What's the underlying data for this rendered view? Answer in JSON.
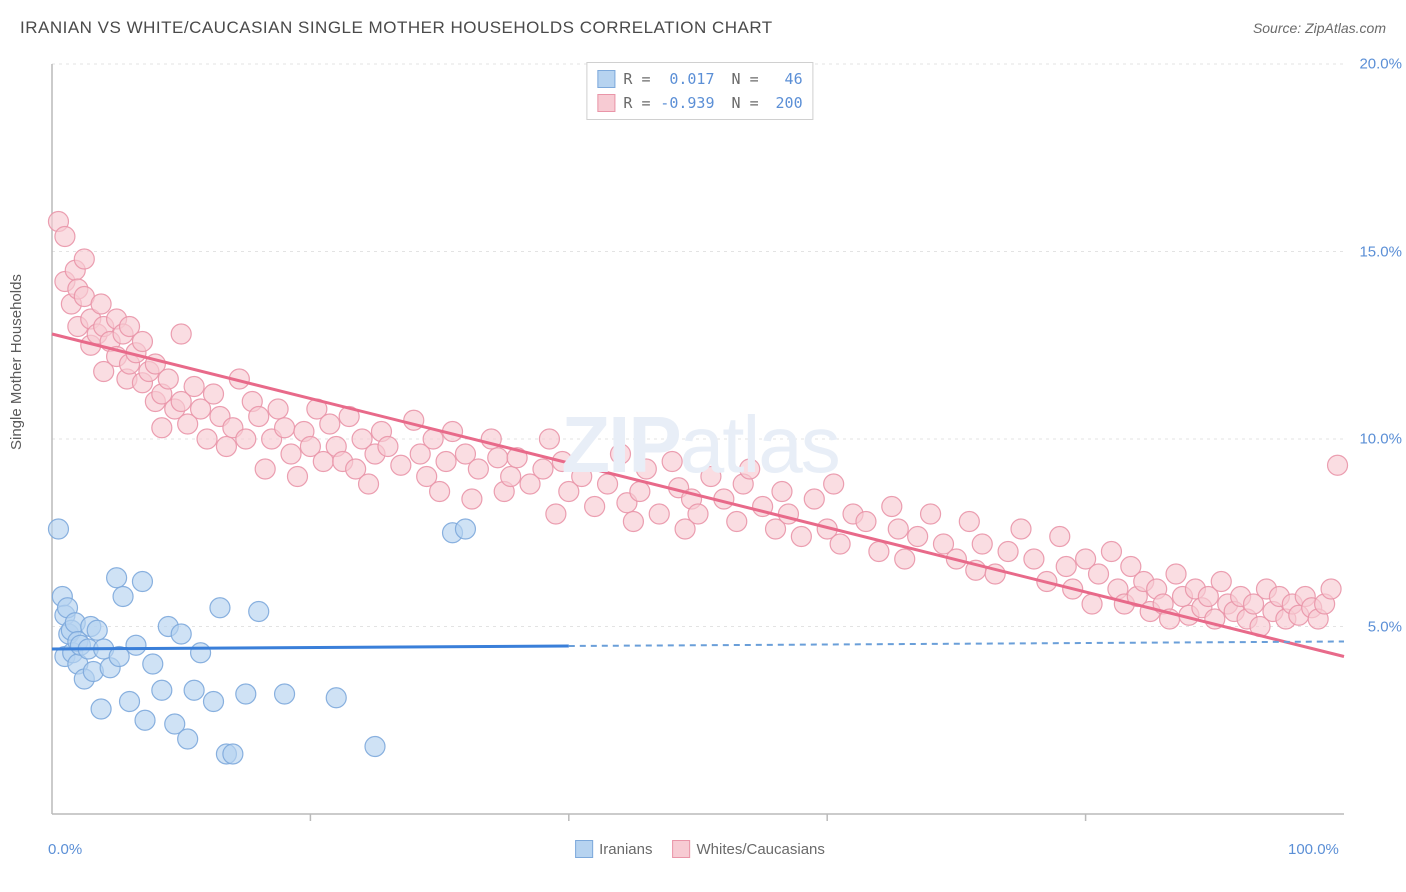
{
  "title": "IRANIAN VS WHITE/CAUCASIAN SINGLE MOTHER HOUSEHOLDS CORRELATION CHART",
  "source": "Source: ZipAtlas.com",
  "y_axis_label": "Single Mother Households",
  "watermark_bold": "ZIP",
  "watermark_light": "atlas",
  "chart": {
    "type": "scatter",
    "background_color": "#ffffff",
    "grid_color": "#e3e3e3",
    "axis_color": "#bababa",
    "xlim": [
      0,
      100
    ],
    "ylim": [
      0,
      20
    ],
    "y_ticks": [
      5.0,
      10.0,
      15.0,
      20.0
    ],
    "y_tick_labels": [
      "5.0%",
      "10.0%",
      "15.0%",
      "20.0%"
    ],
    "x_ticks": [
      0,
      100
    ],
    "x_tick_labels": [
      "0.0%",
      "100.0%"
    ],
    "x_minor_ticks": [
      20,
      40,
      60,
      80
    ],
    "series": [
      {
        "name": "Iranians",
        "marker_color_fill": "#b6d3f0",
        "marker_color_stroke": "#7da9db",
        "marker_opacity": 0.65,
        "marker_radius": 10,
        "trendline_color": "#3a7fd9",
        "trendline_width": 3,
        "trendline_dashed_color": "#6a9fd9",
        "R": "0.017",
        "N": "46",
        "trendline": {
          "x1": 0,
          "y1": 4.4,
          "x2": 100,
          "y2": 4.6,
          "solid_until_x": 40
        },
        "points": [
          [
            0.5,
            7.6
          ],
          [
            0.8,
            5.8
          ],
          [
            1.0,
            5.3
          ],
          [
            1.0,
            4.2
          ],
          [
            1.2,
            5.5
          ],
          [
            1.3,
            4.8
          ],
          [
            1.5,
            4.9
          ],
          [
            1.6,
            4.3
          ],
          [
            1.8,
            5.1
          ],
          [
            2.0,
            4.6
          ],
          [
            2.0,
            4.0
          ],
          [
            2.2,
            4.5
          ],
          [
            2.5,
            3.6
          ],
          [
            2.8,
            4.4
          ],
          [
            3.0,
            5.0
          ],
          [
            3.2,
            3.8
          ],
          [
            3.5,
            4.9
          ],
          [
            3.8,
            2.8
          ],
          [
            4.0,
            4.4
          ],
          [
            4.5,
            3.9
          ],
          [
            5.0,
            6.3
          ],
          [
            5.2,
            4.2
          ],
          [
            5.5,
            5.8
          ],
          [
            6.0,
            3.0
          ],
          [
            6.5,
            4.5
          ],
          [
            7.0,
            6.2
          ],
          [
            7.2,
            2.5
          ],
          [
            7.8,
            4.0
          ],
          [
            8.5,
            3.3
          ],
          [
            9.0,
            5.0
          ],
          [
            9.5,
            2.4
          ],
          [
            10.0,
            4.8
          ],
          [
            10.5,
            2.0
          ],
          [
            11.0,
            3.3
          ],
          [
            11.5,
            4.3
          ],
          [
            12.5,
            3.0
          ],
          [
            13.0,
            5.5
          ],
          [
            13.5,
            1.6
          ],
          [
            14.0,
            1.6
          ],
          [
            15.0,
            3.2
          ],
          [
            16.0,
            5.4
          ],
          [
            18.0,
            3.2
          ],
          [
            22.0,
            3.1
          ],
          [
            25.0,
            1.8
          ],
          [
            31.0,
            7.5
          ],
          [
            32.0,
            7.6
          ]
        ]
      },
      {
        "name": "Whites/Caucasians",
        "marker_color_fill": "#f7cbd3",
        "marker_color_stroke": "#e995a8",
        "marker_opacity": 0.65,
        "marker_radius": 10,
        "trendline_color": "#e86a8a",
        "trendline_width": 3,
        "R": "-0.939",
        "N": "200",
        "trendline": {
          "x1": 0,
          "y1": 12.8,
          "x2": 100,
          "y2": 4.2,
          "solid_until_x": 100
        },
        "points": [
          [
            0.5,
            15.8
          ],
          [
            1.0,
            15.4
          ],
          [
            1.0,
            14.2
          ],
          [
            1.5,
            13.6
          ],
          [
            1.8,
            14.5
          ],
          [
            2.0,
            14.0
          ],
          [
            2.0,
            13.0
          ],
          [
            2.5,
            13.8
          ],
          [
            2.5,
            14.8
          ],
          [
            3.0,
            13.2
          ],
          [
            3.0,
            12.5
          ],
          [
            3.5,
            12.8
          ],
          [
            3.8,
            13.6
          ],
          [
            4.0,
            13.0
          ],
          [
            4.0,
            11.8
          ],
          [
            4.5,
            12.6
          ],
          [
            5.0,
            12.2
          ],
          [
            5.0,
            13.2
          ],
          [
            5.5,
            12.8
          ],
          [
            5.8,
            11.6
          ],
          [
            6.0,
            12.0
          ],
          [
            6.0,
            13.0
          ],
          [
            6.5,
            12.3
          ],
          [
            7.0,
            11.5
          ],
          [
            7.0,
            12.6
          ],
          [
            7.5,
            11.8
          ],
          [
            8.0,
            11.0
          ],
          [
            8.0,
            12.0
          ],
          [
            8.5,
            11.2
          ],
          [
            8.5,
            10.3
          ],
          [
            9.0,
            11.6
          ],
          [
            9.5,
            10.8
          ],
          [
            10.0,
            12.8
          ],
          [
            10.0,
            11.0
          ],
          [
            10.5,
            10.4
          ],
          [
            11.0,
            11.4
          ],
          [
            11.5,
            10.8
          ],
          [
            12.0,
            10.0
          ],
          [
            12.5,
            11.2
          ],
          [
            13.0,
            10.6
          ],
          [
            13.5,
            9.8
          ],
          [
            14.0,
            10.3
          ],
          [
            14.5,
            11.6
          ],
          [
            15.0,
            10.0
          ],
          [
            15.5,
            11.0
          ],
          [
            16.0,
            10.6
          ],
          [
            16.5,
            9.2
          ],
          [
            17.0,
            10.0
          ],
          [
            17.5,
            10.8
          ],
          [
            18.0,
            10.3
          ],
          [
            18.5,
            9.6
          ],
          [
            19.0,
            9.0
          ],
          [
            19.5,
            10.2
          ],
          [
            20.0,
            9.8
          ],
          [
            20.5,
            10.8
          ],
          [
            21.0,
            9.4
          ],
          [
            21.5,
            10.4
          ],
          [
            22.0,
            9.8
          ],
          [
            22.5,
            9.4
          ],
          [
            23.0,
            10.6
          ],
          [
            23.5,
            9.2
          ],
          [
            24.0,
            10.0
          ],
          [
            24.5,
            8.8
          ],
          [
            25.0,
            9.6
          ],
          [
            25.5,
            10.2
          ],
          [
            26.0,
            9.8
          ],
          [
            27.0,
            9.3
          ],
          [
            28.0,
            10.5
          ],
          [
            28.5,
            9.6
          ],
          [
            29.0,
            9.0
          ],
          [
            29.5,
            10.0
          ],
          [
            30.0,
            8.6
          ],
          [
            30.5,
            9.4
          ],
          [
            31.0,
            10.2
          ],
          [
            32.0,
            9.6
          ],
          [
            32.5,
            8.4
          ],
          [
            33.0,
            9.2
          ],
          [
            34.0,
            10.0
          ],
          [
            34.5,
            9.5
          ],
          [
            35.0,
            8.6
          ],
          [
            35.5,
            9.0
          ],
          [
            36.0,
            9.5
          ],
          [
            37.0,
            8.8
          ],
          [
            38.0,
            9.2
          ],
          [
            38.5,
            10.0
          ],
          [
            39.0,
            8.0
          ],
          [
            39.5,
            9.4
          ],
          [
            40.0,
            8.6
          ],
          [
            41.0,
            9.0
          ],
          [
            42.0,
            8.2
          ],
          [
            43.0,
            8.8
          ],
          [
            44.0,
            9.6
          ],
          [
            44.5,
            8.3
          ],
          [
            45.0,
            7.8
          ],
          [
            45.5,
            8.6
          ],
          [
            46.0,
            9.2
          ],
          [
            47.0,
            8.0
          ],
          [
            48.0,
            9.4
          ],
          [
            48.5,
            8.7
          ],
          [
            49.0,
            7.6
          ],
          [
            49.5,
            8.4
          ],
          [
            50.0,
            8.0
          ],
          [
            51.0,
            9.0
          ],
          [
            52.0,
            8.4
          ],
          [
            53.0,
            7.8
          ],
          [
            53.5,
            8.8
          ],
          [
            54.0,
            9.2
          ],
          [
            55.0,
            8.2
          ],
          [
            56.0,
            7.6
          ],
          [
            56.5,
            8.6
          ],
          [
            57.0,
            8.0
          ],
          [
            58.0,
            7.4
          ],
          [
            59.0,
            8.4
          ],
          [
            60.0,
            7.6
          ],
          [
            60.5,
            8.8
          ],
          [
            61.0,
            7.2
          ],
          [
            62.0,
            8.0
          ],
          [
            63.0,
            7.8
          ],
          [
            64.0,
            7.0
          ],
          [
            65.0,
            8.2
          ],
          [
            65.5,
            7.6
          ],
          [
            66.0,
            6.8
          ],
          [
            67.0,
            7.4
          ],
          [
            68.0,
            8.0
          ],
          [
            69.0,
            7.2
          ],
          [
            70.0,
            6.8
          ],
          [
            71.0,
            7.8
          ],
          [
            71.5,
            6.5
          ],
          [
            72.0,
            7.2
          ],
          [
            73.0,
            6.4
          ],
          [
            74.0,
            7.0
          ],
          [
            75.0,
            7.6
          ],
          [
            76.0,
            6.8
          ],
          [
            77.0,
            6.2
          ],
          [
            78.0,
            7.4
          ],
          [
            78.5,
            6.6
          ],
          [
            79.0,
            6.0
          ],
          [
            80.0,
            6.8
          ],
          [
            80.5,
            5.6
          ],
          [
            81.0,
            6.4
          ],
          [
            82.0,
            7.0
          ],
          [
            82.5,
            6.0
          ],
          [
            83.0,
            5.6
          ],
          [
            83.5,
            6.6
          ],
          [
            84.0,
            5.8
          ],
          [
            84.5,
            6.2
          ],
          [
            85.0,
            5.4
          ],
          [
            85.5,
            6.0
          ],
          [
            86.0,
            5.6
          ],
          [
            86.5,
            5.2
          ],
          [
            87.0,
            6.4
          ],
          [
            87.5,
            5.8
          ],
          [
            88.0,
            5.3
          ],
          [
            88.5,
            6.0
          ],
          [
            89.0,
            5.5
          ],
          [
            89.5,
            5.8
          ],
          [
            90.0,
            5.2
          ],
          [
            90.5,
            6.2
          ],
          [
            91.0,
            5.6
          ],
          [
            91.5,
            5.4
          ],
          [
            92.0,
            5.8
          ],
          [
            92.5,
            5.2
          ],
          [
            93.0,
            5.6
          ],
          [
            93.5,
            5.0
          ],
          [
            94.0,
            6.0
          ],
          [
            94.5,
            5.4
          ],
          [
            95.0,
            5.8
          ],
          [
            95.5,
            5.2
          ],
          [
            96.0,
            5.6
          ],
          [
            96.5,
            5.3
          ],
          [
            97.0,
            5.8
          ],
          [
            97.5,
            5.5
          ],
          [
            98.0,
            5.2
          ],
          [
            98.5,
            5.6
          ],
          [
            99.0,
            6.0
          ],
          [
            99.5,
            9.3
          ]
        ]
      }
    ],
    "legend_bottom": [
      {
        "swatch_fill": "#b6d3f0",
        "swatch_stroke": "#7da9db",
        "label": "Iranians"
      },
      {
        "swatch_fill": "#f7cbd3",
        "swatch_stroke": "#e995a8",
        "label": "Whites/Caucasians"
      }
    ]
  }
}
